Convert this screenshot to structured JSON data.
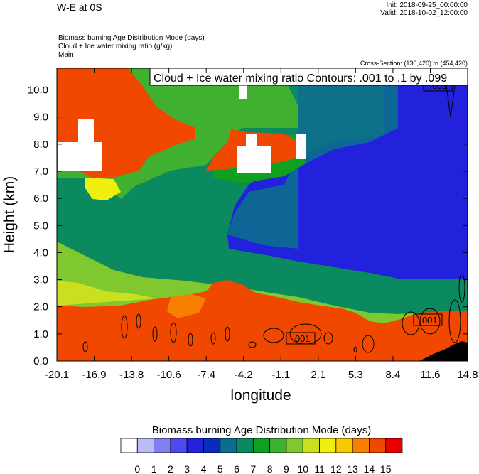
{
  "header": {
    "title": "W-E at 0S",
    "init": "Init: 2018-09-25_00:00:00",
    "valid": "Valid: 2018-10-02_12:00:00",
    "field1": "Biomass burning Age Distribution Mode   (days)",
    "field2": "Cloud + Ice water mixing ratio   (g/kg)",
    "field3": "Main",
    "cross_section": "Cross-Section: (130,420) to (454,420)"
  },
  "chart_data": {
    "type": "heatmap",
    "title": "Biomass burning Age Distribution Mode  (days)",
    "contour_label": "Cloud + Ice water mixing ratio Contours: .001 to .1 by .099",
    "contour_value_labels": [
      ".001",
      ".001",
      ".001"
    ],
    "xlabel": "longitude",
    "ylabel": "Height (km)",
    "x_ticks": [
      "-20.1",
      "-16.9",
      "-13.8",
      "-10.6",
      "-7.4",
      "-4.2",
      "-1.1",
      "2.1",
      "5.3",
      "8.4",
      "11.6",
      "14.8"
    ],
    "y_ticks": [
      "0.0",
      "1.0",
      "2.0",
      "3.0",
      "4.0",
      "5.0",
      "6.0",
      "7.0",
      "8.0",
      "9.0",
      "10.0"
    ],
    "xlim": [
      -20.1,
      14.8
    ],
    "ylim": [
      0,
      10.8
    ],
    "colorbar": {
      "labels": [
        "0",
        "1",
        "2",
        "3",
        "4",
        "5",
        "6",
        "7",
        "8",
        "9",
        "10",
        "11",
        "12",
        "13",
        "14",
        "15"
      ],
      "colors": [
        "#ffffff",
        "#bcbcf5",
        "#8080f0",
        "#4a4aee",
        "#2222dd",
        "#0a2cbe",
        "#0c6e8e",
        "#0a8a5e",
        "#10a020",
        "#40b030",
        "#80c830",
        "#c8e020",
        "#f0f010",
        "#f8c800",
        "#f88000",
        "#f04800",
        "#e80000"
      ]
    },
    "approximate_layers": [
      {
        "region": "boundary layer, full width",
        "height_km": [
          0,
          2.2
        ],
        "value_days": 15
      },
      {
        "region": "west, mid levels",
        "height_km": [
          2.2,
          7.0
        ],
        "value_days": 7
      },
      {
        "region": "east, mid/upper levels",
        "height_km": [
          2.2,
          10.8
        ],
        "value_days": 4
      },
      {
        "region": "west, upper levels",
        "height_km": [
          7.5,
          10.8
        ],
        "value_days": 15
      },
      {
        "region": "center, upper levels",
        "height_km": [
          7.0,
          10.8
        ],
        "value_days": 8
      }
    ]
  }
}
